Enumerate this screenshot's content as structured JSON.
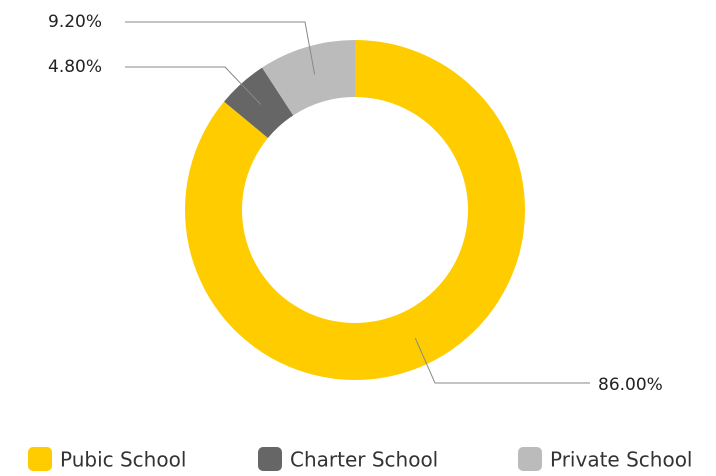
{
  "chart_data": {
    "type": "donut",
    "categories": [
      "Pubic School",
      "Charter School",
      "Private School"
    ],
    "values": [
      86,
      4.8,
      9.2
    ],
    "value_labels": [
      "86.00%",
      "4.80%",
      "9.20%"
    ],
    "colors": [
      "#FFCC00",
      "#666666",
      "#BBBBBB"
    ],
    "legend": "bottom"
  }
}
